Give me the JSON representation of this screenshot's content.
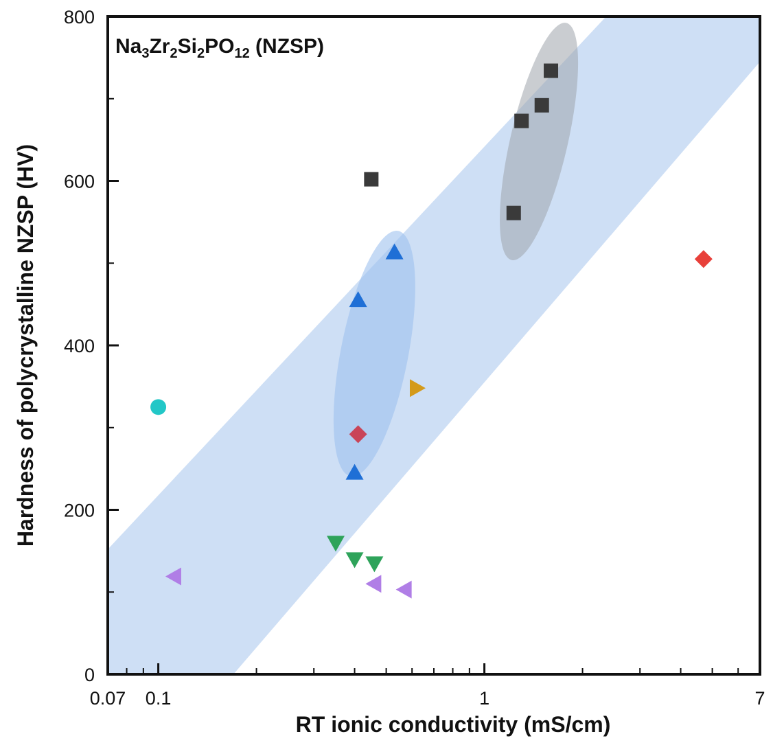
{
  "chart_data": {
    "type": "scatter",
    "title": "Na3Zr2Si2PO12 (NZSP)",
    "title_parts": [
      {
        "t": "Na",
        "sub": false
      },
      {
        "t": "3",
        "sub": true
      },
      {
        "t": "Zr",
        "sub": false
      },
      {
        "t": "2",
        "sub": true
      },
      {
        "t": "Si",
        "sub": false
      },
      {
        "t": "2",
        "sub": true
      },
      {
        "t": "PO",
        "sub": false
      },
      {
        "t": "12",
        "sub": true
      },
      {
        "t": " (NZSP)",
        "sub": false
      }
    ],
    "xlabel": "RT ionic conductivity (mS/cm)",
    "ylabel": "Hardness of polycrystalline NZSP (HV)",
    "xscale": "log",
    "xlim": [
      0.07,
      7
    ],
    "ylim": [
      0,
      800
    ],
    "x_tick_labels": [
      "0.07",
      "0.1",
      "1",
      "7"
    ],
    "x_tick_values": [
      0.07,
      0.1,
      1,
      7
    ],
    "y_tick_labels": [
      "0",
      "200",
      "400",
      "600",
      "800"
    ],
    "y_tick_values": [
      0,
      200,
      400,
      600,
      800
    ],
    "grid": false,
    "legend": "none",
    "trend_band": {
      "color": "#c5d9f3",
      "upper_edge": [
        [
          0.07,
          152
        ],
        [
          7,
          1000
        ]
      ],
      "lower_edge": [
        [
          0.17,
          0
        ],
        [
          7,
          745
        ]
      ]
    },
    "ellipses": [
      {
        "name": "gray-cluster",
        "color": "#9ea4ab",
        "opacity": 0.55,
        "cx": 1.47,
        "cy": 648,
        "x_from": 1.2,
        "x_to": 1.8,
        "ry_data": 148,
        "tilt_deg": 13
      },
      {
        "name": "blue-cluster",
        "color": "#9fc1ee",
        "opacity": 0.6,
        "cx": 0.46,
        "cy": 390,
        "x_from": 0.36,
        "x_to": 0.58,
        "ry_data": 152,
        "tilt_deg": 11
      }
    ],
    "series": [
      {
        "marker": "square",
        "color": "#3a3a3a",
        "points": [
          [
            0.45,
            602
          ],
          [
            1.23,
            561
          ],
          [
            1.3,
            673
          ],
          [
            1.5,
            692
          ],
          [
            1.6,
            734
          ]
        ]
      },
      {
        "marker": "triangle-up",
        "color": "#1f6fd6",
        "points": [
          [
            0.4,
            245
          ],
          [
            0.41,
            455
          ],
          [
            0.53,
            513
          ]
        ]
      },
      {
        "marker": "diamond",
        "color": "#c94458",
        "points": [
          [
            0.41,
            292
          ]
        ]
      },
      {
        "marker": "diamond",
        "color": "#e8403a",
        "points": [
          [
            4.7,
            505
          ]
        ]
      },
      {
        "marker": "triangle-right",
        "color": "#d49a1a",
        "points": [
          [
            0.62,
            348
          ]
        ]
      },
      {
        "marker": "circle",
        "color": "#22c7c7",
        "points": [
          [
            0.1,
            325
          ]
        ]
      },
      {
        "marker": "triangle-down",
        "color": "#2ea35a",
        "points": [
          [
            0.35,
            160
          ],
          [
            0.4,
            140
          ],
          [
            0.46,
            135
          ]
        ]
      },
      {
        "marker": "triangle-left",
        "color": "#b07ee6",
        "points": [
          [
            0.112,
            119
          ],
          [
            0.46,
            110
          ],
          [
            0.57,
            103
          ]
        ]
      }
    ]
  }
}
